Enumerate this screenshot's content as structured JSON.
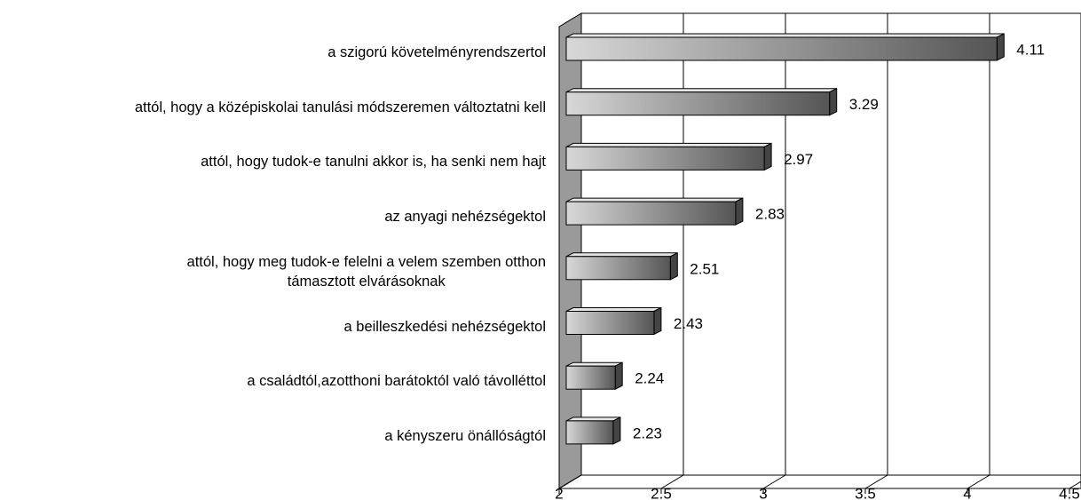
{
  "chart_data": {
    "type": "bar",
    "orientation": "horizontal",
    "categories": [
      "a szigorú követelményrendszertol",
      "attól, hogy a középiskolai tanulási módszeremen változtatni kell",
      "attól, hogy tudok-e tanulni akkor is, ha senki nem hajt",
      "az anyagi nehézségektol",
      "attól, hogy meg tudok-e felelni a velem szemben otthon\ntámasztott elvárásoknak",
      "a beilleszkedési nehézségektol",
      "a családtól,azotthoni barátoktól való távolléttol",
      "a kényszeru önállóságtól"
    ],
    "values": [
      4.11,
      3.29,
      2.97,
      2.83,
      2.51,
      2.43,
      2.24,
      2.23
    ],
    "color": "#555555",
    "xlim": [
      2,
      4.5
    ],
    "xticks": [
      2,
      2.5,
      3,
      3.5,
      4,
      4.5
    ],
    "grid": true
  }
}
